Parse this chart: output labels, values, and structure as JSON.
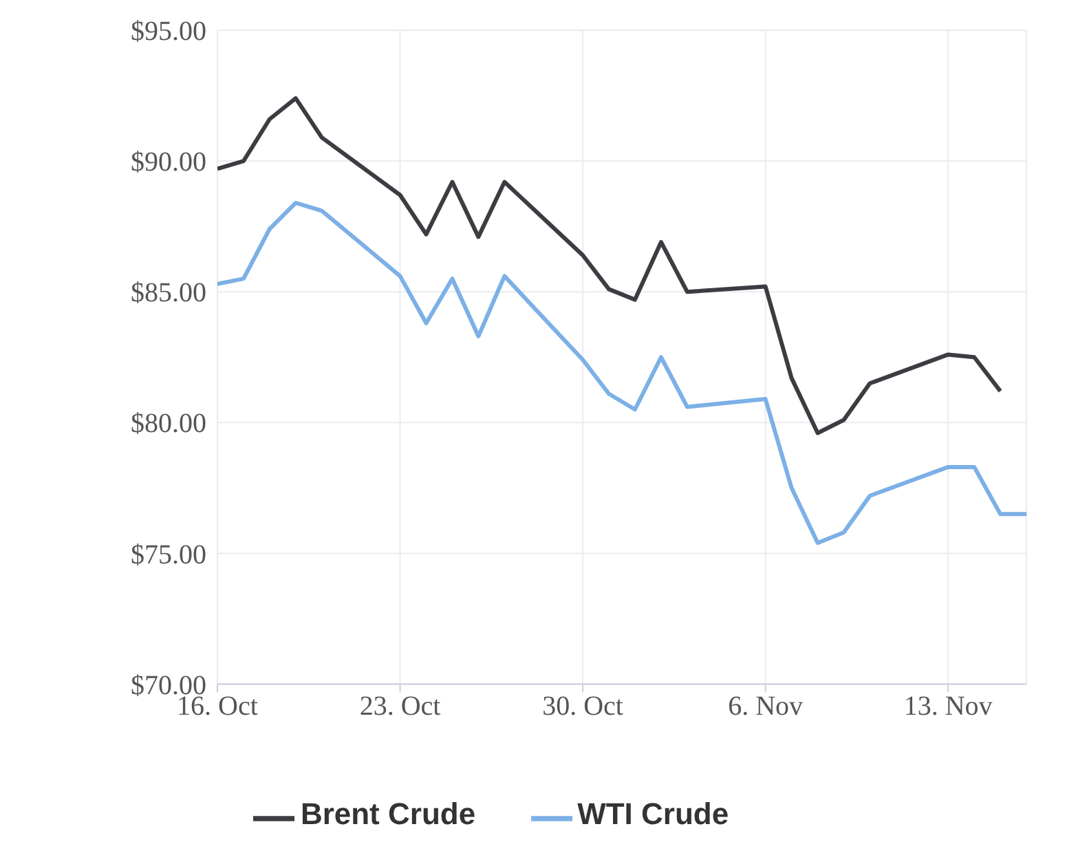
{
  "chart_data": {
    "type": "line",
    "x": [
      "--10-16",
      "--10-17",
      "--10-18",
      "--10-19",
      "--10-20",
      "--10-23",
      "--10-24",
      "--10-25",
      "--10-26",
      "--10-27",
      "--10-30",
      "--10-31",
      "--11-01",
      "--11-02",
      "--11-03",
      "--11-06",
      "--11-07",
      "--11-08",
      "--11-09",
      "--11-10",
      "--11-13",
      "--11-14",
      "--11-15",
      "--11-16"
    ],
    "series": [
      {
        "name": "WTI Crude",
        "color": "#7cb0e6",
        "values": [
          85.3,
          85.5,
          87.4,
          88.4,
          88.1,
          85.6,
          83.8,
          85.5,
          83.3,
          85.6,
          82.4,
          81.1,
          80.5,
          82.5,
          80.6,
          80.9,
          77.5,
          75.4,
          75.8,
          77.2,
          78.3,
          78.3,
          76.5,
          76.5
        ]
      },
      {
        "name": "Brent Crude",
        "color": "#3c3c42",
        "values": [
          89.7,
          90.0,
          91.6,
          92.4,
          90.9,
          88.7,
          87.2,
          89.2,
          87.1,
          89.2,
          86.4,
          85.1,
          84.7,
          86.9,
          85.0,
          85.2,
          81.7,
          79.6,
          80.1,
          81.5,
          82.6,
          82.5,
          81.2,
          null
        ]
      }
    ],
    "xlim": [
      "--10-16",
      "--11-16"
    ],
    "xticks": [
      {
        "value": "--10-16",
        "label": "16. Oct"
      },
      {
        "value": "--10-23",
        "label": "23. Oct"
      },
      {
        "value": "--10-30",
        "label": "30. Oct"
      },
      {
        "value": "--11-06",
        "label": "6. Nov"
      },
      {
        "value": "--11-13",
        "label": "13. Nov"
      }
    ],
    "ylim": [
      70,
      95
    ],
    "yticks": [
      {
        "value": 70,
        "label": "$70.00"
      },
      {
        "value": 75,
        "label": "$75.00"
      },
      {
        "value": 80,
        "label": "$80.00"
      },
      {
        "value": 85,
        "label": "$85.00"
      },
      {
        "value": 90,
        "label": "$90.00"
      },
      {
        "value": 95,
        "label": "$95.00"
      }
    ],
    "grid": true,
    "legend": "bottom",
    "marker": "none",
    "line_style": "solid"
  }
}
